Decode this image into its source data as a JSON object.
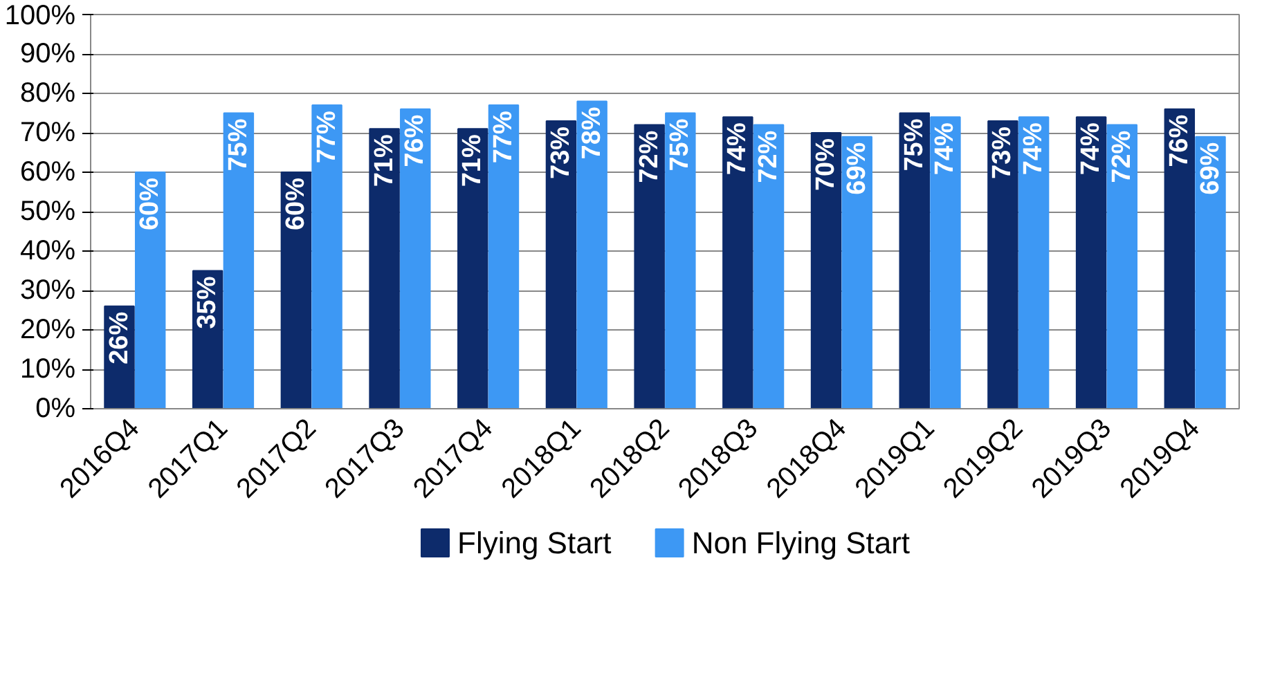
{
  "chart_data": {
    "type": "bar",
    "categories": [
      "2016Q4",
      "2017Q1",
      "2017Q2",
      "2017Q3",
      "2017Q4",
      "2018Q1",
      "2018Q2",
      "2018Q3",
      "2018Q4",
      "2019Q1",
      "2019Q2",
      "2019Q3",
      "2019Q4"
    ],
    "series": [
      {
        "name": "Flying Start",
        "color": "#0d2b6b",
        "values": [
          26,
          35,
          60,
          71,
          71,
          73,
          72,
          74,
          70,
          75,
          73,
          74,
          76
        ],
        "value_labels": [
          "26%",
          "35%",
          "60%",
          "71%",
          "71%",
          "73%",
          "72%",
          "74%",
          "70%",
          "75%",
          "73%",
          "74%",
          "76%"
        ]
      },
      {
        "name": "Non Flying Start",
        "color": "#3d98f4",
        "values": [
          60,
          75,
          77,
          76,
          77,
          78,
          75,
          72,
          69,
          74,
          74,
          72,
          69
        ],
        "value_labels": [
          "60%",
          "75%",
          "77%",
          "76%",
          "77%",
          "78%",
          "75%",
          "72%",
          "69%",
          "74%",
          "74%",
          "72%",
          "69%"
        ]
      }
    ],
    "ylim": [
      0,
      100
    ],
    "yticks": [
      {
        "value": 0,
        "label": "0%"
      },
      {
        "value": 10,
        "label": "10%"
      },
      {
        "value": 20,
        "label": "20%"
      },
      {
        "value": 30,
        "label": "30%"
      },
      {
        "value": 40,
        "label": "40%"
      },
      {
        "value": 50,
        "label": "50%"
      },
      {
        "value": 60,
        "label": "60%"
      },
      {
        "value": 70,
        "label": "70%"
      },
      {
        "value": 80,
        "label": "80%"
      },
      {
        "value": 90,
        "label": "90%"
      },
      {
        "value": 100,
        "label": "100%"
      }
    ],
    "grid": "y",
    "legend": "bottom"
  }
}
